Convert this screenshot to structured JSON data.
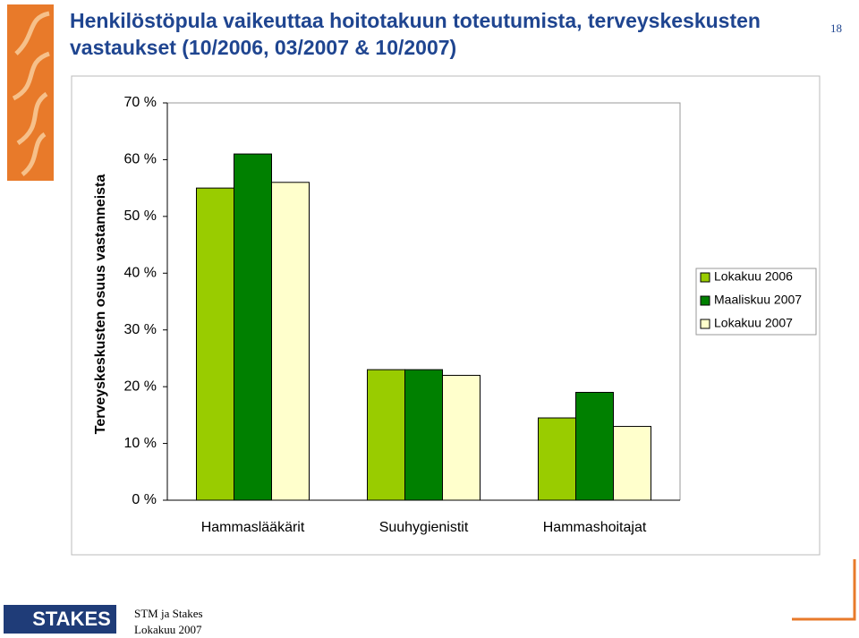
{
  "chart_data": {
    "type": "bar",
    "title": "Henkilöstöpula vaikeuttaa hoitotakuun toteutumista, terveyskeskusten vastaukset (10/2006, 03/2007 & 10/2007)",
    "y_label": "Terveyskeskusten osuus vastanneista",
    "categories": [
      "Hammaslääkärit",
      "Suuhygienistit",
      "Hammashoitajat"
    ],
    "series": [
      {
        "name": "Lokakuu 2006",
        "color": "#99cc00",
        "values": [
          55,
          23,
          14.5
        ]
      },
      {
        "name": "Maaliskuu 2007",
        "color": "#008000",
        "values": [
          61,
          23,
          19
        ]
      },
      {
        "name": "Lokakuu 2007",
        "color": "#ffffcc",
        "values": [
          56,
          22,
          13
        ]
      }
    ],
    "ylim": [
      0,
      70
    ],
    "yticks": [
      {
        "value": 0,
        "label": "0 %"
      },
      {
        "value": 10,
        "label": "10 %"
      },
      {
        "value": 20,
        "label": "20 %"
      },
      {
        "value": 30,
        "label": "30 %"
      },
      {
        "value": 40,
        "label": "40 %"
      },
      {
        "value": 50,
        "label": "50 %"
      },
      {
        "value": 60,
        "label": "60 %"
      },
      {
        "value": 70,
        "label": "70 %"
      }
    ],
    "grid": false,
    "legend": "right"
  },
  "slide": {
    "page_number": "18",
    "footer": [
      "STM ja Stakes",
      "Lokakuu 2007"
    ],
    "logo": "STAKES"
  }
}
